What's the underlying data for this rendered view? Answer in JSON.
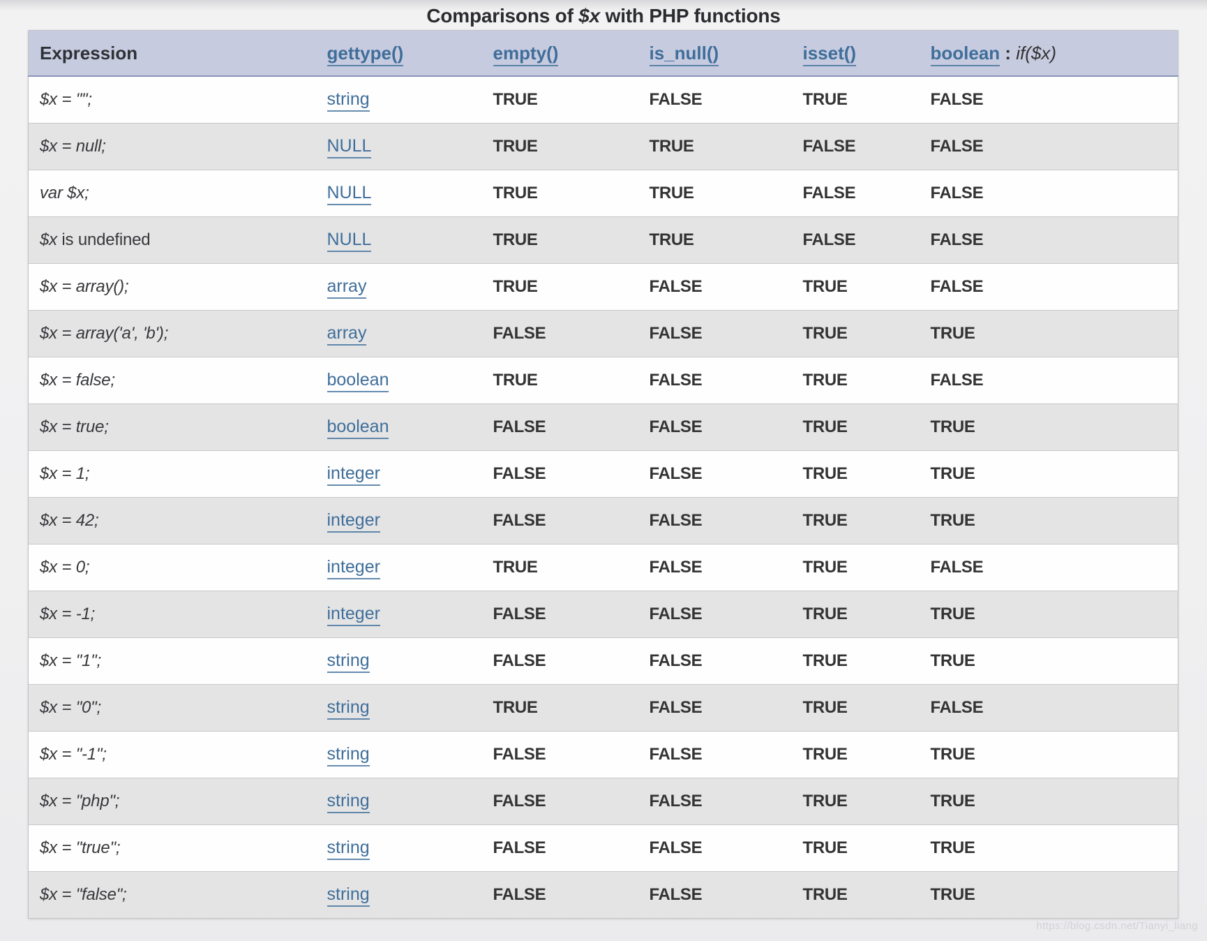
{
  "title": {
    "pre": "Comparisons of ",
    "var": "$x",
    "post": " with PHP functions"
  },
  "watermark": "https://blog.csdn.net/Tianyi_liang",
  "colors": {
    "header_bg": "#c7cbdf",
    "header_border": "#8a94ba",
    "link": "#3f6e9a",
    "row_alt": "#e4e4e5",
    "text": "#333333",
    "page_bg": "#f0f0f1"
  },
  "table": {
    "headers": {
      "expression": "Expression",
      "gettype": "gettype()",
      "empty": "empty()",
      "is_null": "is_null()",
      "isset": "isset()",
      "boolean": "boolean",
      "boolean_sep": " : ",
      "boolean_annotation": "if($x)"
    },
    "rows": [
      {
        "expr": "$x = \"\";",
        "note": "",
        "type": "string",
        "empty": "TRUE",
        "is_null": "FALSE",
        "isset": "TRUE",
        "if_x": "FALSE"
      },
      {
        "expr": "$x = null;",
        "note": "",
        "type": "NULL",
        "empty": "TRUE",
        "is_null": "TRUE",
        "isset": "FALSE",
        "if_x": "FALSE"
      },
      {
        "expr": "var $x;",
        "note": "",
        "type": "NULL",
        "empty": "TRUE",
        "is_null": "TRUE",
        "isset": "FALSE",
        "if_x": "FALSE"
      },
      {
        "expr": "$x",
        "note": " is undefined",
        "type": "NULL",
        "empty": "TRUE",
        "is_null": "TRUE",
        "isset": "FALSE",
        "if_x": "FALSE"
      },
      {
        "expr": "$x = array();",
        "note": "",
        "type": "array",
        "empty": "TRUE",
        "is_null": "FALSE",
        "isset": "TRUE",
        "if_x": "FALSE"
      },
      {
        "expr": "$x = array('a', 'b');",
        "note": "",
        "type": "array",
        "empty": "FALSE",
        "is_null": "FALSE",
        "isset": "TRUE",
        "if_x": "TRUE"
      },
      {
        "expr": "$x = false;",
        "note": "",
        "type": "boolean",
        "empty": "TRUE",
        "is_null": "FALSE",
        "isset": "TRUE",
        "if_x": "FALSE"
      },
      {
        "expr": "$x = true;",
        "note": "",
        "type": "boolean",
        "empty": "FALSE",
        "is_null": "FALSE",
        "isset": "TRUE",
        "if_x": "TRUE"
      },
      {
        "expr": "$x = 1;",
        "note": "",
        "type": "integer",
        "empty": "FALSE",
        "is_null": "FALSE",
        "isset": "TRUE",
        "if_x": "TRUE"
      },
      {
        "expr": "$x = 42;",
        "note": "",
        "type": "integer",
        "empty": "FALSE",
        "is_null": "FALSE",
        "isset": "TRUE",
        "if_x": "TRUE"
      },
      {
        "expr": "$x = 0;",
        "note": "",
        "type": "integer",
        "empty": "TRUE",
        "is_null": "FALSE",
        "isset": "TRUE",
        "if_x": "FALSE"
      },
      {
        "expr": "$x = -1;",
        "note": "",
        "type": "integer",
        "empty": "FALSE",
        "is_null": "FALSE",
        "isset": "TRUE",
        "if_x": "TRUE"
      },
      {
        "expr": "$x = \"1\";",
        "note": "",
        "type": "string",
        "empty": "FALSE",
        "is_null": "FALSE",
        "isset": "TRUE",
        "if_x": "TRUE"
      },
      {
        "expr": "$x = \"0\";",
        "note": "",
        "type": "string",
        "empty": "TRUE",
        "is_null": "FALSE",
        "isset": "TRUE",
        "if_x": "FALSE"
      },
      {
        "expr": "$x = \"-1\";",
        "note": "",
        "type": "string",
        "empty": "FALSE",
        "is_null": "FALSE",
        "isset": "TRUE",
        "if_x": "TRUE"
      },
      {
        "expr": "$x = \"php\";",
        "note": "",
        "type": "string",
        "empty": "FALSE",
        "is_null": "FALSE",
        "isset": "TRUE",
        "if_x": "TRUE"
      },
      {
        "expr": "$x = \"true\";",
        "note": "",
        "type": "string",
        "empty": "FALSE",
        "is_null": "FALSE",
        "isset": "TRUE",
        "if_x": "TRUE"
      },
      {
        "expr": "$x = \"false\";",
        "note": "",
        "type": "string",
        "empty": "FALSE",
        "is_null": "FALSE",
        "isset": "TRUE",
        "if_x": "TRUE"
      }
    ]
  }
}
